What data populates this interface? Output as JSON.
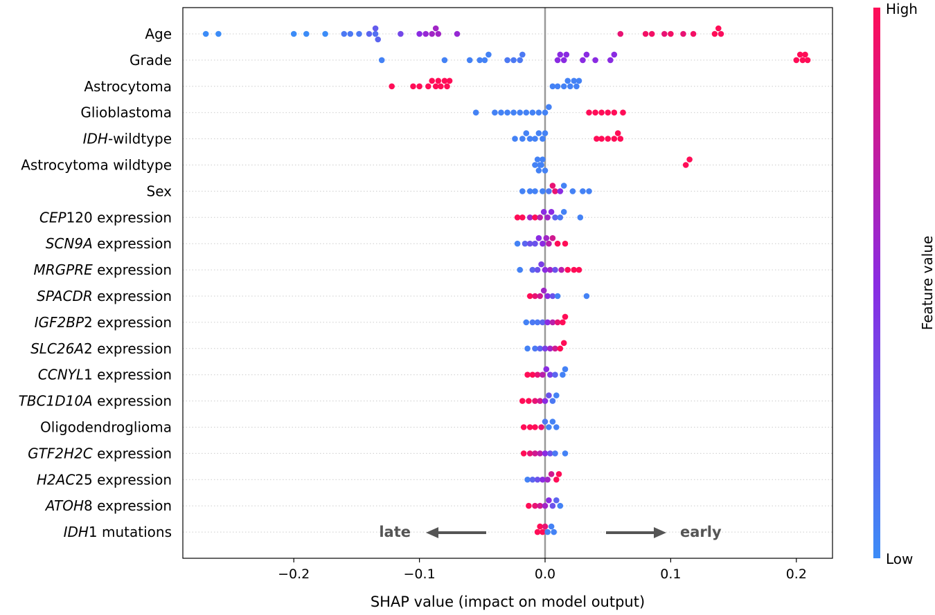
{
  "chart_data": {
    "type": "scatter",
    "subtype": "shap-beeswarm",
    "xlabel": "SHAP value (impact on model output)",
    "xlim": [
      -0.29,
      0.23
    ],
    "xticks": [
      -0.2,
      -0.1,
      0.0,
      0.1,
      0.2
    ],
    "xtick_labels": [
      "−0.2",
      "−0.1",
      "0.0",
      "0.1",
      "0.2"
    ],
    "colorbar": {
      "label": "Feature value",
      "high": "High",
      "low": "Low",
      "low_color": "#3c8cf7",
      "mid_color": "#8a2be2",
      "high_color": "#ff0d57"
    },
    "annotations": {
      "left_text": "late",
      "right_text": "early"
    },
    "features": [
      {
        "segments": [
          {
            "t": "Age",
            "i": false
          }
        ],
        "points": [
          [
            -0.27,
            0
          ],
          [
            -0.26,
            0
          ],
          [
            -0.2,
            0
          ],
          [
            -0.19,
            0
          ],
          [
            -0.175,
            0
          ],
          [
            -0.16,
            0.1
          ],
          [
            -0.155,
            0.1
          ],
          [
            -0.148,
            0.1
          ],
          [
            -0.14,
            0.2
          ],
          [
            -0.135,
            0.15
          ],
          [
            -0.135,
            0.25
          ],
          [
            -0.133,
            0.2
          ],
          [
            -0.115,
            0.35
          ],
          [
            -0.1,
            0.5
          ],
          [
            -0.095,
            0.55
          ],
          [
            -0.09,
            0.6
          ],
          [
            -0.087,
            0.6
          ],
          [
            -0.085,
            0.6
          ],
          [
            -0.07,
            0.55
          ],
          [
            0.06,
            0.9
          ],
          [
            0.08,
            0.95
          ],
          [
            0.085,
            0.95
          ],
          [
            0.095,
            0.9
          ],
          [
            0.1,
            0.95
          ],
          [
            0.11,
            0.9
          ],
          [
            0.118,
            0.95
          ],
          [
            0.135,
            1.0
          ],
          [
            0.138,
            1.0
          ],
          [
            0.14,
            0.98
          ]
        ]
      },
      {
        "segments": [
          {
            "t": "Grade",
            "i": false
          }
        ],
        "points": [
          [
            -0.13,
            0.05
          ],
          [
            -0.08,
            0.05
          ],
          [
            -0.06,
            0.05
          ],
          [
            -0.052,
            0.05
          ],
          [
            -0.048,
            0.05
          ],
          [
            -0.045,
            0.05
          ],
          [
            -0.03,
            0.1
          ],
          [
            -0.025,
            0.1
          ],
          [
            -0.02,
            0.1
          ],
          [
            -0.018,
            0.1
          ],
          [
            0.01,
            0.5
          ],
          [
            0.012,
            0.5
          ],
          [
            0.015,
            0.5
          ],
          [
            0.017,
            0.5
          ],
          [
            0.03,
            0.5
          ],
          [
            0.033,
            0.5
          ],
          [
            0.04,
            0.5
          ],
          [
            0.052,
            0.5
          ],
          [
            0.055,
            0.5
          ],
          [
            0.2,
            1.0
          ],
          [
            0.203,
            1.0
          ],
          [
            0.205,
            1.0
          ],
          [
            0.207,
            1.0
          ],
          [
            0.209,
            1.0
          ]
        ]
      },
      {
        "segments": [
          {
            "t": "Astrocytoma",
            "i": false
          }
        ],
        "points": [
          [
            -0.122,
            1.0
          ],
          [
            -0.105,
            1.0
          ],
          [
            -0.1,
            1.0
          ],
          [
            -0.093,
            1.0
          ],
          [
            -0.09,
            1.0
          ],
          [
            -0.087,
            1.0
          ],
          [
            -0.085,
            1.0
          ],
          [
            -0.083,
            1.0
          ],
          [
            -0.08,
            1.0
          ],
          [
            -0.078,
            1.0
          ],
          [
            -0.076,
            1.0
          ],
          [
            0.006,
            0.05
          ],
          [
            0.01,
            0.05
          ],
          [
            0.015,
            0.05
          ],
          [
            0.018,
            0.05
          ],
          [
            0.02,
            0.05
          ],
          [
            0.023,
            0.05
          ],
          [
            0.025,
            0.05
          ],
          [
            0.027,
            0.05
          ]
        ]
      },
      {
        "segments": [
          {
            "t": "Glioblastoma",
            "i": false
          }
        ],
        "points": [
          [
            -0.055,
            0.05
          ],
          [
            -0.04,
            0.05
          ],
          [
            -0.035,
            0.05
          ],
          [
            -0.03,
            0.05
          ],
          [
            -0.025,
            0.05
          ],
          [
            -0.02,
            0.05
          ],
          [
            -0.015,
            0.05
          ],
          [
            -0.01,
            0.05
          ],
          [
            -0.005,
            0.05
          ],
          [
            0.0,
            0.05
          ],
          [
            0.003,
            0.05
          ],
          [
            0.035,
            1.0
          ],
          [
            0.04,
            1.0
          ],
          [
            0.045,
            1.0
          ],
          [
            0.05,
            1.0
          ],
          [
            0.055,
            1.0
          ],
          [
            0.062,
            1.0
          ]
        ]
      },
      {
        "segments": [
          {
            "t": "IDH",
            "i": true
          },
          {
            "t": "-wildtype",
            "i": false
          }
        ],
        "points": [
          [
            -0.024,
            0.05
          ],
          [
            -0.018,
            0.05
          ],
          [
            -0.015,
            0.05
          ],
          [
            -0.012,
            0.05
          ],
          [
            -0.008,
            0.05
          ],
          [
            -0.005,
            0.05
          ],
          [
            -0.002,
            0.05
          ],
          [
            0.0,
            0.05
          ],
          [
            0.041,
            1.0
          ],
          [
            0.045,
            1.0
          ],
          [
            0.05,
            1.0
          ],
          [
            0.055,
            1.0
          ],
          [
            0.058,
            1.0
          ],
          [
            0.06,
            1.0
          ]
        ]
      },
      {
        "segments": [
          {
            "t": "Astrocytoma wildtype",
            "i": false
          }
        ],
        "points": [
          [
            -0.008,
            0.05
          ],
          [
            -0.006,
            0.05
          ],
          [
            -0.004,
            0.05
          ],
          [
            -0.002,
            0.05
          ],
          [
            0.0,
            0.05
          ],
          [
            -0.005,
            0.05
          ],
          [
            -0.003,
            0.05
          ],
          [
            0.112,
            1.0
          ],
          [
            0.115,
            1.0
          ]
        ]
      },
      {
        "segments": [
          {
            "t": "Sex",
            "i": false
          }
        ],
        "points": [
          [
            -0.018,
            0.05
          ],
          [
            -0.012,
            0.05
          ],
          [
            -0.008,
            0.05
          ],
          [
            -0.002,
            0.05
          ],
          [
            0.003,
            0.1
          ],
          [
            0.006,
            0.9
          ],
          [
            0.008,
            0.9
          ],
          [
            0.012,
            0.5
          ],
          [
            0.015,
            0.05
          ],
          [
            0.022,
            0.05
          ],
          [
            0.03,
            0.05
          ],
          [
            0.035,
            0.05
          ]
        ]
      },
      {
        "segments": [
          {
            "t": "CEP",
            "i": true
          },
          {
            "t": "120 expression",
            "i": false
          }
        ],
        "points": [
          [
            -0.022,
            1.0
          ],
          [
            -0.018,
            1.0
          ],
          [
            -0.012,
            0.6
          ],
          [
            -0.008,
            1.0
          ],
          [
            -0.004,
            0.7
          ],
          [
            -0.001,
            0.5
          ],
          [
            0.002,
            0.6
          ],
          [
            0.005,
            0.5
          ],
          [
            0.008,
            0.2
          ],
          [
            0.012,
            0.1
          ],
          [
            0.015,
            0.05
          ],
          [
            0.028,
            0.05
          ]
        ]
      },
      {
        "segments": [
          {
            "t": "SCN9A",
            "i": true
          },
          {
            "t": " expression",
            "i": false
          }
        ],
        "points": [
          [
            -0.022,
            0.05
          ],
          [
            -0.016,
            0.2
          ],
          [
            -0.012,
            0.3
          ],
          [
            -0.008,
            0.3
          ],
          [
            -0.005,
            0.5
          ],
          [
            -0.002,
            0.5
          ],
          [
            0.001,
            0.6
          ],
          [
            0.003,
            0.7
          ],
          [
            0.006,
            0.8
          ],
          [
            0.01,
            1.0
          ],
          [
            0.016,
            1.0
          ]
        ]
      },
      {
        "segments": [
          {
            "t": "MRGPRE",
            "i": true
          },
          {
            "t": " expression",
            "i": false
          }
        ],
        "points": [
          [
            -0.02,
            0.05
          ],
          [
            -0.01,
            0.2
          ],
          [
            -0.006,
            0.3
          ],
          [
            -0.003,
            0.4
          ],
          [
            0.0,
            0.5
          ],
          [
            0.004,
            0.6
          ],
          [
            0.008,
            0.3
          ],
          [
            0.013,
            0.7
          ],
          [
            0.018,
            1.0
          ],
          [
            0.023,
            1.0
          ],
          [
            0.027,
            1.0
          ]
        ]
      },
      {
        "segments": [
          {
            "t": "SPACDR",
            "i": true
          },
          {
            "t": " expression",
            "i": false
          }
        ],
        "points": [
          [
            -0.012,
            1.0
          ],
          [
            -0.008,
            0.9
          ],
          [
            -0.004,
            0.8
          ],
          [
            -0.001,
            0.6
          ],
          [
            0.002,
            0.5
          ],
          [
            0.006,
            0.3
          ],
          [
            0.01,
            0.05
          ],
          [
            0.033,
            0.05
          ]
        ]
      },
      {
        "segments": [
          {
            "t": "IGF2BP",
            "i": true
          },
          {
            "t": "2 expression",
            "i": false
          }
        ],
        "points": [
          [
            -0.015,
            0.05
          ],
          [
            -0.01,
            0.1
          ],
          [
            -0.006,
            0.1
          ],
          [
            -0.002,
            0.2
          ],
          [
            0.002,
            0.5
          ],
          [
            0.006,
            0.7
          ],
          [
            0.01,
            0.9
          ],
          [
            0.014,
            1.0
          ],
          [
            0.016,
            1.0
          ]
        ]
      },
      {
        "segments": [
          {
            "t": "SLC26A",
            "i": true
          },
          {
            "t": "2 expression",
            "i": false
          }
        ],
        "points": [
          [
            -0.014,
            0.05
          ],
          [
            -0.008,
            0.1
          ],
          [
            -0.004,
            0.2
          ],
          [
            0.0,
            0.4
          ],
          [
            0.004,
            0.6
          ],
          [
            0.008,
            0.8
          ],
          [
            0.012,
            1.0
          ],
          [
            0.015,
            1.0
          ]
        ]
      },
      {
        "segments": [
          {
            "t": "CCNYL",
            "i": true
          },
          {
            "t": "1 expression",
            "i": false
          }
        ],
        "points": [
          [
            -0.014,
            1.0
          ],
          [
            -0.01,
            1.0
          ],
          [
            -0.006,
            0.9
          ],
          [
            -0.002,
            0.7
          ],
          [
            0.001,
            0.5
          ],
          [
            0.004,
            0.4
          ],
          [
            0.008,
            0.2
          ],
          [
            0.014,
            0.05
          ],
          [
            0.016,
            0.05
          ]
        ]
      },
      {
        "segments": [
          {
            "t": "TBC1D10A",
            "i": true
          },
          {
            "t": " expression",
            "i": false
          }
        ],
        "points": [
          [
            -0.018,
            1.0
          ],
          [
            -0.013,
            1.0
          ],
          [
            -0.008,
            0.9
          ],
          [
            -0.004,
            0.8
          ],
          [
            0.0,
            0.5
          ],
          [
            0.003,
            0.3
          ],
          [
            0.006,
            0.1
          ],
          [
            0.009,
            0.05
          ]
        ]
      },
      {
        "segments": [
          {
            "t": "Oligodendroglioma",
            "i": false
          }
        ],
        "points": [
          [
            -0.017,
            1.0
          ],
          [
            -0.012,
            1.0
          ],
          [
            -0.008,
            1.0
          ],
          [
            -0.003,
            0.9
          ],
          [
            0.0,
            0.1
          ],
          [
            0.003,
            0.05
          ],
          [
            0.006,
            0.05
          ],
          [
            0.009,
            0.05
          ]
        ]
      },
      {
        "segments": [
          {
            "t": "GTF2H2C",
            "i": true
          },
          {
            "t": " expression",
            "i": false
          }
        ],
        "points": [
          [
            -0.017,
            1.0
          ],
          [
            -0.012,
            0.9
          ],
          [
            -0.008,
            0.8
          ],
          [
            -0.004,
            0.7
          ],
          [
            0.0,
            0.5
          ],
          [
            0.004,
            0.3
          ],
          [
            0.008,
            0.1
          ],
          [
            0.016,
            0.05
          ]
        ]
      },
      {
        "segments": [
          {
            "t": "H2AC",
            "i": true
          },
          {
            "t": "25 expression",
            "i": false
          }
        ],
        "points": [
          [
            -0.014,
            0.05
          ],
          [
            -0.01,
            0.2
          ],
          [
            -0.006,
            0.3
          ],
          [
            -0.002,
            0.5
          ],
          [
            0.002,
            0.6
          ],
          [
            0.005,
            0.8
          ],
          [
            0.009,
            1.0
          ],
          [
            0.011,
            1.0
          ]
        ]
      },
      {
        "segments": [
          {
            "t": "ATOH",
            "i": true
          },
          {
            "t": "8 expression",
            "i": false
          }
        ],
        "points": [
          [
            -0.013,
            1.0
          ],
          [
            -0.008,
            0.9
          ],
          [
            -0.004,
            0.8
          ],
          [
            0.0,
            0.6
          ],
          [
            0.003,
            0.5
          ],
          [
            0.006,
            0.3
          ],
          [
            0.009,
            0.2
          ],
          [
            0.012,
            0.05
          ]
        ]
      },
      {
        "segments": [
          {
            "t": "IDH",
            "i": true
          },
          {
            "t": "1 mutations",
            "i": false
          }
        ],
        "points": [
          [
            -0.006,
            1.0
          ],
          [
            -0.004,
            1.0
          ],
          [
            -0.002,
            1.0
          ],
          [
            0.0,
            0.9
          ],
          [
            0.002,
            0.05
          ],
          [
            0.005,
            0.05
          ],
          [
            0.007,
            0.05
          ]
        ]
      }
    ]
  }
}
